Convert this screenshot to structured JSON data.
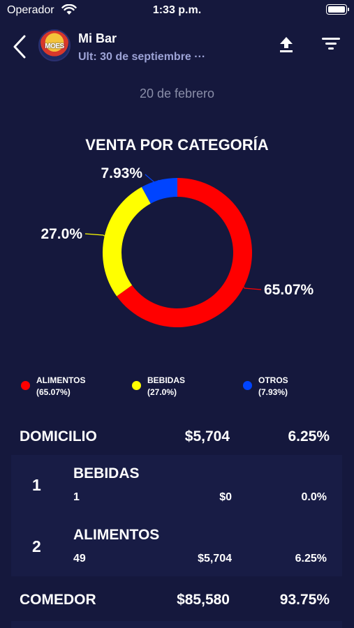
{
  "status_bar": {
    "carrier": "Operador",
    "time": "1:33 p.m."
  },
  "header": {
    "bar_name": "Mi Bar",
    "last_update": "Ult: 30 de septiembre ···",
    "avatar_text": "MOES",
    "icons": {
      "back": "back-chevron-icon",
      "upload": "upload-icon",
      "filter": "filter-icon"
    }
  },
  "date_label": "20 de febrero",
  "chart_data": {
    "type": "pie",
    "title": "VENTA POR CATEGORÍA",
    "donut": true,
    "slices": [
      {
        "name": "ALIMENTOS",
        "value": 65.07,
        "label": "65.07%",
        "legend_pct": "(65.07%)",
        "color": "#ff0000"
      },
      {
        "name": "BEBIDAS",
        "value": 27.0,
        "label": "27.0%",
        "legend_pct": "(27.0%)",
        "color": "#ffff00"
      },
      {
        "name": "OTROS",
        "value": 7.93,
        "label": "7.93%",
        "legend_pct": "(7.93%)",
        "color": "#0044ff"
      }
    ],
    "legend_position": "bottom"
  },
  "sections": [
    {
      "name": "DOMICILIO",
      "amount": "$5,704",
      "pct": "6.25%",
      "items": [
        {
          "rank": "1",
          "name": "BEBIDAS",
          "qty": "1",
          "amount": "$0",
          "pct": "0.0%"
        },
        {
          "rank": "2",
          "name": "ALIMENTOS",
          "qty": "49",
          "amount": "$5,704",
          "pct": "6.25%"
        }
      ]
    },
    {
      "name": "COMEDOR",
      "amount": "$85,580",
      "pct": "93.75%"
    }
  ],
  "colors": {
    "background": "#15183d",
    "panel": "#181c45",
    "subtitle": "#9da3d6",
    "date": "#8a8ea8"
  }
}
